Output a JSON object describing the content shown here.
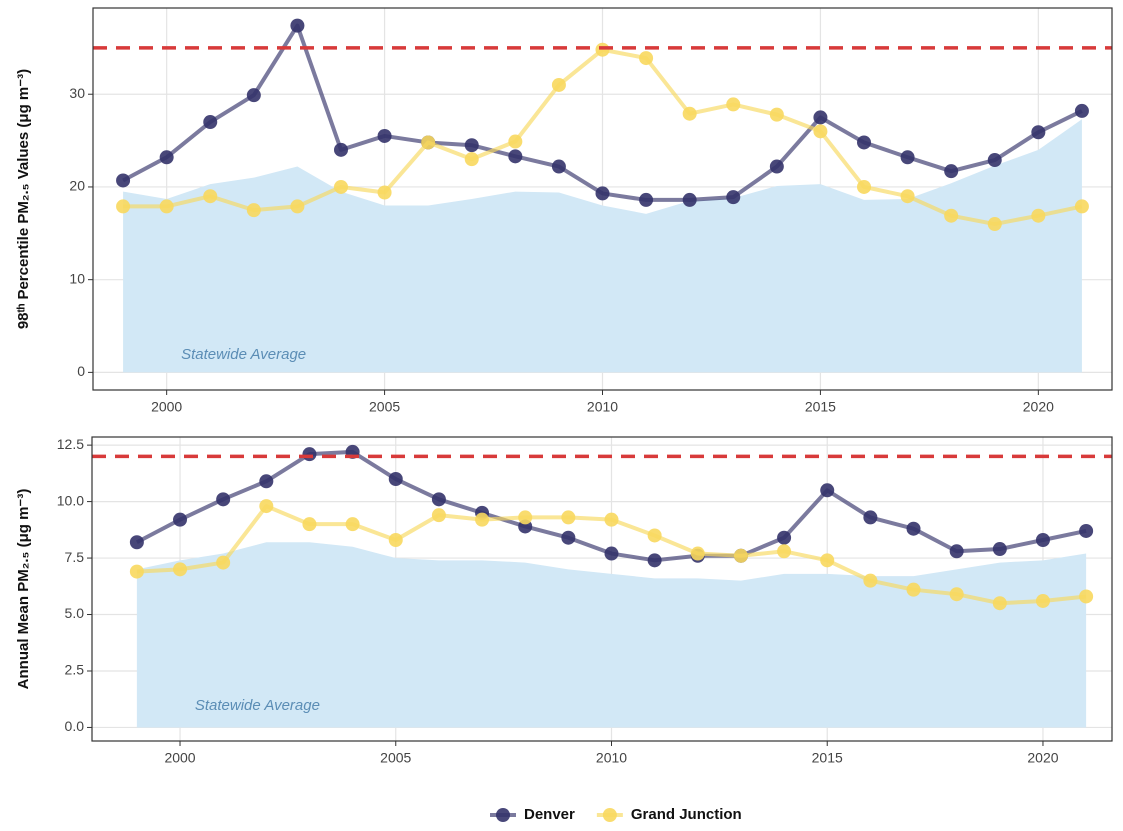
{
  "chart_data": [
    {
      "type": "line",
      "ylabel": "98ᵗʰ Percentile PM₂.₅ Values (μg m⁻³)",
      "x": [
        1999,
        2000,
        2001,
        2002,
        2003,
        2004,
        2005,
        2006,
        2007,
        2008,
        2009,
        2010,
        2011,
        2012,
        2013,
        2014,
        2015,
        2016,
        2017,
        2018,
        2019,
        2020,
        2021
      ],
      "xlim": [
        1998.31,
        2021.69
      ],
      "xticks": [
        2000,
        2005,
        2010,
        2015,
        2020
      ],
      "ylim": [
        -1.9,
        39.3
      ],
      "yticks": [
        0,
        10,
        20,
        30
      ],
      "grid": true,
      "hline": {
        "value": 35,
        "color": "#d83a3a"
      },
      "series": [
        {
          "name": "Statewide Average",
          "type": "area",
          "color": "#d2e8f6",
          "values": [
            19.5,
            18.7,
            20.3,
            21,
            22.2,
            19.5,
            18,
            18,
            18.7,
            19.5,
            19.4,
            18,
            17.1,
            18.5,
            18.8,
            20.1,
            20.3,
            18.6,
            18.7,
            20.4,
            22.3,
            24,
            27.3
          ]
        },
        {
          "name": "Denver",
          "color": "#34336a",
          "values": [
            20.7,
            23.2,
            27.0,
            29.9,
            37.4,
            24.0,
            25.5,
            24.8,
            24.5,
            23.3,
            22.2,
            19.3,
            18.6,
            18.6,
            18.9,
            22.2,
            27.5,
            24.8,
            23.2,
            21.7,
            22.9,
            25.9,
            28.2
          ]
        },
        {
          "name": "Grand Junction",
          "color": "#f8d85e",
          "values": [
            17.9,
            17.9,
            19.0,
            17.5,
            17.9,
            20,
            19.4,
            24.8,
            23,
            24.9,
            31,
            34.8,
            33.9,
            27.9,
            28.9,
            27.8,
            26,
            20,
            19,
            16.9,
            16,
            16.9,
            17.9
          ]
        }
      ],
      "legend": "bottom"
    },
    {
      "type": "line",
      "ylabel": "Annual Mean PM₂.₅ (μg m⁻³)",
      "x": [
        1999,
        2000,
        2001,
        2002,
        2003,
        2004,
        2005,
        2006,
        2007,
        2008,
        2009,
        2010,
        2011,
        2012,
        2013,
        2014,
        2015,
        2016,
        2017,
        2018,
        2019,
        2020,
        2021
      ],
      "xlim": [
        1997.96,
        2021.6
      ],
      "xticks": [
        2000,
        2005,
        2010,
        2015,
        2020
      ],
      "ylim": [
        -0.6,
        12.86
      ],
      "yticks": [
        {
          "value": 0,
          "label": "0.0"
        },
        {
          "value": 2.5,
          "label": "2.5"
        },
        {
          "value": 5,
          "label": "5.0"
        },
        {
          "value": 7.5,
          "label": "7.5"
        },
        {
          "value": 10,
          "label": "10.0"
        },
        {
          "value": 12.5,
          "label": "12.5"
        }
      ],
      "grid": true,
      "hline": {
        "value": 12,
        "color": "#d83a3a"
      },
      "series": [
        {
          "name": "Statewide Average",
          "type": "area",
          "color": "#d2e8f6",
          "values": [
            7.0,
            7.4,
            7.7,
            8.2,
            8.2,
            8.0,
            7.5,
            7.4,
            7.4,
            7.3,
            7.0,
            6.8,
            6.6,
            6.6,
            6.5,
            6.8,
            6.8,
            6.7,
            6.7,
            7.0,
            7.3,
            7.4,
            7.7
          ]
        },
        {
          "color": "#34336a",
          "values": [
            8.2,
            9.2,
            10.1,
            10.9,
            12.1,
            12.2,
            11.0,
            10.1,
            9.5,
            8.9,
            8.4,
            7.7,
            7.4,
            7.6,
            7.6,
            8.4,
            10.5,
            9.3,
            8.8,
            7.8,
            7.9,
            8.3,
            8.7
          ]
        },
        {
          "color": "#f8d85e",
          "values": [
            6.9,
            7.0,
            7.3,
            9.8,
            9.0,
            9.0,
            8.3,
            9.4,
            9.2,
            9.3,
            9.3,
            9.2,
            8.5,
            7.7,
            7.6,
            7.8,
            7.4,
            6.5,
            6.1,
            5.9,
            5.5,
            5.6,
            5.8
          ]
        }
      ]
    }
  ]
}
